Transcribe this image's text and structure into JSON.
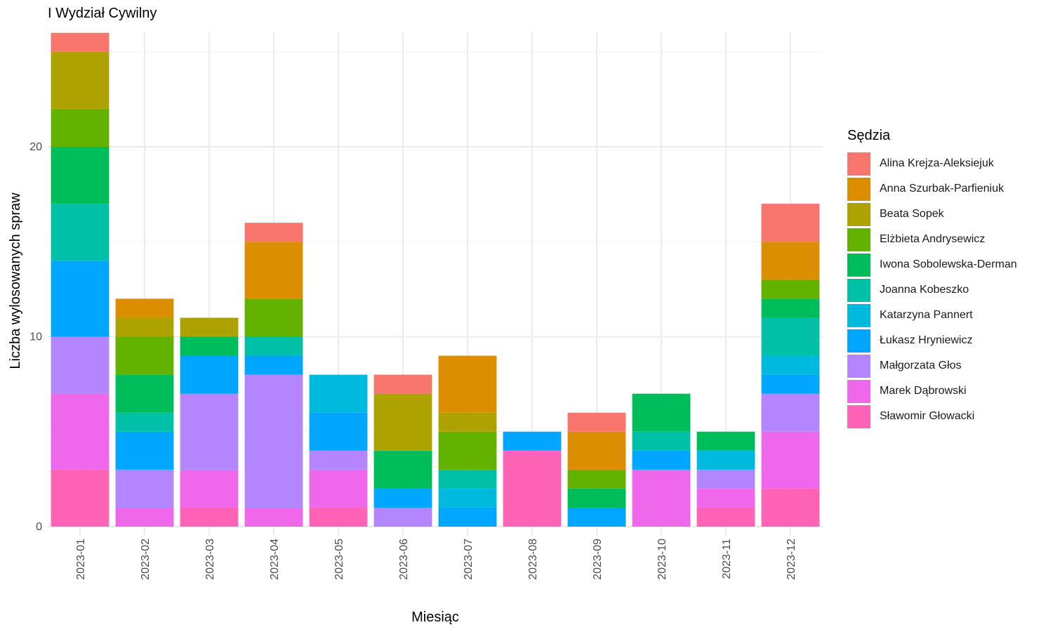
{
  "chart_data": {
    "type": "bar",
    "stacked": true,
    "title": "I Wydział Cywilny",
    "xlabel": "Miesiąc",
    "ylabel": "Liczba wylosowanych spraw",
    "ylim": [
      0,
      26
    ],
    "yticks": [
      0,
      10,
      20
    ],
    "grid": true,
    "legend_position": "right",
    "legend_title": "Sędzia",
    "categories": [
      "2023-01",
      "2023-02",
      "2023-03",
      "2023-04",
      "2023-05",
      "2023-06",
      "2023-07",
      "2023-08",
      "2023-09",
      "2023-10",
      "2023-11",
      "2023-12"
    ],
    "series": [
      {
        "name": "Alina Krejza-Aleksiejuk",
        "color": "#F8766D",
        "values": [
          1,
          0,
          0,
          1,
          0,
          1,
          0,
          0,
          1,
          0,
          0,
          2
        ]
      },
      {
        "name": "Anna Szurbak-Parfieniuk",
        "color": "#DB8E00",
        "values": [
          0,
          1,
          0,
          3,
          0,
          0,
          3,
          0,
          2,
          0,
          0,
          2
        ]
      },
      {
        "name": "Beata Sopek",
        "color": "#AEA200",
        "values": [
          3,
          1,
          1,
          0,
          0,
          3,
          1,
          0,
          0,
          0,
          0,
          0
        ]
      },
      {
        "name": "Elżbieta Andrysewicz",
        "color": "#64B200",
        "values": [
          2,
          2,
          0,
          2,
          0,
          0,
          2,
          0,
          1,
          0,
          0,
          1
        ]
      },
      {
        "name": "Iwona Sobolewska-Derman",
        "color": "#00BD5C",
        "values": [
          3,
          2,
          1,
          0,
          0,
          2,
          0,
          0,
          1,
          2,
          1,
          1
        ]
      },
      {
        "name": "Joanna Kobeszko",
        "color": "#00C1A7",
        "values": [
          3,
          1,
          0,
          1,
          0,
          0,
          1,
          0,
          0,
          1,
          0,
          2
        ]
      },
      {
        "name": "Katarzyna Pannert",
        "color": "#00BADE",
        "values": [
          0,
          0,
          0,
          0,
          2,
          0,
          1,
          0,
          0,
          0,
          1,
          1
        ]
      },
      {
        "name": "Łukasz Hryniewicz",
        "color": "#00A6FF",
        "values": [
          4,
          2,
          2,
          1,
          2,
          1,
          1,
          1,
          1,
          1,
          0,
          1
        ]
      },
      {
        "name": "Małgorzata Głos",
        "color": "#B385FF",
        "values": [
          3,
          2,
          4,
          7,
          1,
          1,
          0,
          0,
          0,
          0,
          1,
          2
        ]
      },
      {
        "name": "Marek Dąbrowski",
        "color": "#EF67EB",
        "values": [
          4,
          1,
          2,
          1,
          2,
          0,
          0,
          0,
          0,
          3,
          1,
          3
        ]
      },
      {
        "name": "Sławomir Głowacki",
        "color": "#FF63B6",
        "values": [
          3,
          0,
          1,
          0,
          1,
          0,
          0,
          4,
          0,
          0,
          1,
          2
        ]
      }
    ]
  }
}
